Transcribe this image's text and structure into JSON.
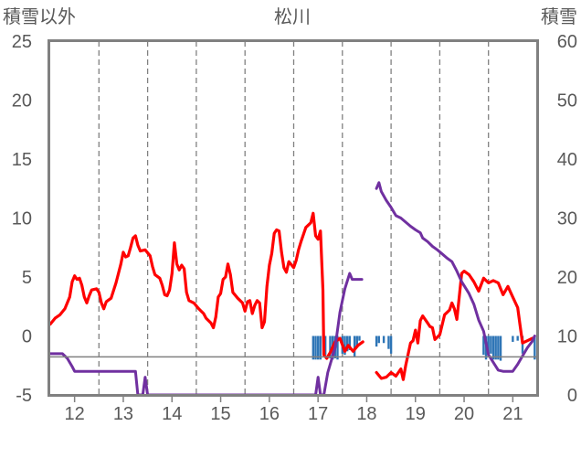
{
  "chart_data": {
    "type": "line",
    "title": "松川",
    "left_axis_label": "積雪以外",
    "right_axis_label": "積雪",
    "left_ylim": [
      -5,
      25
    ],
    "left_ticks": [
      "25",
      "20",
      "15",
      "10",
      "5",
      "0",
      "-5"
    ],
    "right_ylim": [
      0,
      60
    ],
    "right_ticks": [
      "60",
      "50",
      "40",
      "30",
      "20",
      "10",
      "0"
    ],
    "x_ticks": [
      "12",
      "13",
      "14",
      "15",
      "16",
      "17",
      "18",
      "19",
      "20",
      "21"
    ],
    "xlim": [
      11.5,
      21.5
    ],
    "grid": "vertical dashed",
    "colors": {
      "temperature": "#ff0000",
      "snow_depth": "#7030a0",
      "precipitation": "#2e75b6",
      "axis": "#808080"
    },
    "series": [
      {
        "key": "temperature",
        "axis": "left",
        "segments": [
          [
            [
              11.5,
              1.0
            ],
            [
              11.6,
              1.5
            ],
            [
              11.7,
              1.8
            ],
            [
              11.8,
              2.3
            ],
            [
              11.9,
              3.3
            ],
            [
              11.95,
              4.6
            ],
            [
              12.0,
              5.1
            ],
            [
              12.05,
              4.8
            ],
            [
              12.1,
              4.9
            ],
            [
              12.15,
              4.3
            ],
            [
              12.2,
              3.3
            ],
            [
              12.25,
              2.8
            ],
            [
              12.3,
              3.4
            ],
            [
              12.35,
              3.9
            ],
            [
              12.45,
              4.0
            ],
            [
              12.5,
              3.7
            ],
            [
              12.55,
              2.8
            ],
            [
              12.6,
              2.3
            ],
            [
              12.65,
              2.9
            ],
            [
              12.75,
              3.2
            ],
            [
              12.85,
              4.5
            ],
            [
              12.95,
              6.1
            ],
            [
              13.0,
              7.1
            ],
            [
              13.05,
              6.7
            ],
            [
              13.1,
              6.8
            ],
            [
              13.15,
              7.5
            ],
            [
              13.2,
              8.3
            ],
            [
              13.25,
              8.5
            ],
            [
              13.3,
              7.7
            ],
            [
              13.35,
              7.2
            ],
            [
              13.45,
              7.3
            ],
            [
              13.55,
              6.8
            ],
            [
              13.6,
              5.9
            ],
            [
              13.65,
              5.2
            ],
            [
              13.75,
              4.9
            ],
            [
              13.8,
              4.3
            ],
            [
              13.85,
              3.5
            ],
            [
              13.9,
              3.4
            ],
            [
              13.95,
              3.9
            ],
            [
              14.0,
              5.3
            ],
            [
              14.05,
              7.9
            ],
            [
              14.1,
              6.1
            ],
            [
              14.15,
              5.6
            ],
            [
              14.2,
              6.0
            ],
            [
              14.25,
              5.7
            ],
            [
              14.3,
              3.7
            ],
            [
              14.35,
              3.0
            ],
            [
              14.45,
              2.8
            ],
            [
              14.55,
              2.3
            ],
            [
              14.6,
              2.1
            ],
            [
              14.65,
              1.9
            ],
            [
              14.7,
              1.5
            ],
            [
              14.8,
              1.1
            ],
            [
              14.85,
              0.7
            ],
            [
              14.9,
              1.6
            ],
            [
              14.95,
              3.3
            ],
            [
              15.0,
              3.6
            ],
            [
              15.05,
              4.8
            ],
            [
              15.1,
              5.0
            ],
            [
              15.15,
              6.1
            ],
            [
              15.2,
              5.2
            ],
            [
              15.25,
              3.7
            ],
            [
              15.35,
              3.2
            ],
            [
              15.45,
              2.8
            ],
            [
              15.5,
              2.1
            ],
            [
              15.55,
              2.9
            ],
            [
              15.6,
              3.0
            ],
            [
              15.65,
              1.9
            ],
            [
              15.7,
              2.6
            ],
            [
              15.75,
              3.0
            ],
            [
              15.8,
              2.8
            ],
            [
              15.85,
              0.7
            ],
            [
              15.9,
              1.2
            ],
            [
              15.95,
              4.2
            ],
            [
              16.0,
              6.0
            ],
            [
              16.05,
              7.0
            ],
            [
              16.1,
              8.7
            ],
            [
              16.15,
              9.0
            ],
            [
              16.2,
              8.9
            ],
            [
              16.25,
              7.1
            ],
            [
              16.3,
              5.8
            ],
            [
              16.35,
              5.4
            ],
            [
              16.4,
              6.3
            ],
            [
              16.5,
              5.8
            ],
            [
              16.55,
              6.4
            ],
            [
              16.6,
              7.3
            ],
            [
              16.65,
              8.0
            ],
            [
              16.75,
              9.2
            ],
            [
              16.85,
              9.6
            ],
            [
              16.9,
              10.4
            ],
            [
              16.95,
              8.5
            ],
            [
              17.0,
              8.2
            ],
            [
              17.05,
              8.9
            ],
            [
              17.1,
              3.9
            ],
            [
              17.12,
              -1.6
            ],
            [
              17.18,
              -1.9
            ],
            [
              17.25,
              -1.4
            ],
            [
              17.35,
              -0.5
            ],
            [
              17.45,
              -0.2
            ],
            [
              17.55,
              -1.3
            ],
            [
              17.62,
              -0.8
            ],
            [
              17.72,
              -1.3
            ],
            [
              17.82,
              -0.8
            ],
            [
              17.92,
              -0.5
            ]
          ],
          [
            [
              18.2,
              -3.1
            ],
            [
              18.3,
              -3.6
            ],
            [
              18.4,
              -3.5
            ],
            [
              18.5,
              -3.1
            ],
            [
              18.6,
              -3.4
            ],
            [
              18.7,
              -2.8
            ],
            [
              18.75,
              -3.7
            ],
            [
              18.8,
              -2.5
            ],
            [
              18.9,
              -0.6
            ],
            [
              18.95,
              -0.4
            ],
            [
              19.0,
              0.5
            ],
            [
              19.05,
              -0.6
            ],
            [
              19.1,
              1.3
            ],
            [
              19.15,
              1.7
            ],
            [
              19.2,
              1.4
            ],
            [
              19.25,
              1.1
            ],
            [
              19.3,
              0.8
            ],
            [
              19.35,
              0.7
            ],
            [
              19.4,
              -0.3
            ],
            [
              19.5,
              0.1
            ],
            [
              19.6,
              1.8
            ],
            [
              19.7,
              2.2
            ],
            [
              19.75,
              2.8
            ],
            [
              19.8,
              2.3
            ],
            [
              19.85,
              1.4
            ],
            [
              19.9,
              3.3
            ],
            [
              19.95,
              5.3
            ],
            [
              20.0,
              5.5
            ],
            [
              20.1,
              5.2
            ],
            [
              20.2,
              4.6
            ],
            [
              20.3,
              3.8
            ],
            [
              20.4,
              4.9
            ],
            [
              20.5,
              4.5
            ],
            [
              20.6,
              4.7
            ],
            [
              20.7,
              4.5
            ],
            [
              20.8,
              3.5
            ],
            [
              20.9,
              4.2
            ],
            [
              21.0,
              3.3
            ],
            [
              21.1,
              2.4
            ],
            [
              21.15,
              0.9
            ],
            [
              21.2,
              -0.6
            ],
            [
              21.3,
              -0.4
            ],
            [
              21.4,
              -0.2
            ]
          ]
        ]
      },
      {
        "key": "snow_depth",
        "axis": "right",
        "segments": [
          [
            [
              11.5,
              7.0
            ],
            [
              11.75,
              7.0
            ],
            [
              11.85,
              6.2
            ],
            [
              11.95,
              4.8
            ],
            [
              12.0,
              4.0
            ],
            [
              13.25,
              4.0
            ],
            [
              13.3,
              0.0
            ],
            [
              13.4,
              0.0
            ],
            [
              13.45,
              3.0
            ],
            [
              13.5,
              0.0
            ],
            [
              16.95,
              0.0
            ],
            [
              17.0,
              3.0
            ],
            [
              17.05,
              0.0
            ],
            [
              17.12,
              0.0
            ],
            [
              17.2,
              3.8
            ],
            [
              17.35,
              8.0
            ],
            [
              17.45,
              14.0
            ],
            [
              17.55,
              18.0
            ],
            [
              17.65,
              20.6
            ],
            [
              17.7,
              19.6
            ],
            [
              17.8,
              19.6
            ],
            [
              17.9,
              19.6
            ]
          ],
          [
            [
              18.2,
              35.0
            ],
            [
              18.25,
              36.0
            ],
            [
              18.3,
              34.5
            ],
            [
              18.4,
              33.0
            ],
            [
              18.5,
              31.8
            ],
            [
              18.6,
              30.4
            ],
            [
              18.7,
              30.0
            ],
            [
              18.8,
              29.3
            ],
            [
              18.9,
              28.6
            ],
            [
              19.0,
              28.0
            ],
            [
              19.1,
              27.5
            ],
            [
              19.15,
              26.6
            ],
            [
              19.25,
              26.0
            ],
            [
              19.35,
              25.2
            ],
            [
              19.45,
              24.6
            ],
            [
              19.55,
              23.9
            ],
            [
              19.65,
              23.2
            ],
            [
              19.75,
              22.6
            ],
            [
              19.85,
              21.0
            ],
            [
              19.95,
              19.2
            ],
            [
              20.1,
              17.2
            ],
            [
              20.2,
              15.4
            ],
            [
              20.3,
              12.7
            ],
            [
              20.4,
              10.8
            ],
            [
              20.5,
              6.8
            ],
            [
              20.7,
              4.2
            ],
            [
              20.8,
              4.0
            ],
            [
              21.0,
              4.0
            ],
            [
              21.1,
              5.2
            ],
            [
              21.2,
              6.6
            ],
            [
              21.3,
              8.0
            ],
            [
              21.4,
              9.1
            ],
            [
              21.45,
              10.0
            ]
          ]
        ]
      },
      {
        "key": "precipitation",
        "axis": "left",
        "type": "bar",
        "note": "bars hang downward from 0",
        "values": [
          [
            16.9,
            -2.0
          ],
          [
            16.95,
            -2.0
          ],
          [
            17.0,
            -2.0
          ],
          [
            17.05,
            -2.0
          ],
          [
            17.15,
            -1.6
          ],
          [
            17.25,
            -1.9
          ],
          [
            17.3,
            -2.0
          ],
          [
            17.35,
            -1.9
          ],
          [
            17.4,
            -2.0
          ],
          [
            17.5,
            -1.5
          ],
          [
            17.55,
            -1.6
          ],
          [
            17.6,
            -1.3
          ],
          [
            17.65,
            -1.2
          ],
          [
            17.75,
            -1.8
          ],
          [
            17.8,
            -0.9
          ],
          [
            17.85,
            -0.4
          ],
          [
            18.2,
            -0.9
          ],
          [
            18.25,
            -0.6
          ],
          [
            18.35,
            -0.6
          ],
          [
            18.45,
            -1.1
          ],
          [
            18.5,
            -1.5
          ],
          [
            20.4,
            -1.6
          ],
          [
            20.45,
            -2.0
          ],
          [
            20.5,
            -1.7
          ],
          [
            20.55,
            -1.5
          ],
          [
            20.6,
            -2.0
          ],
          [
            20.65,
            -2.0
          ],
          [
            20.7,
            -2.0
          ],
          [
            20.75,
            -2.1
          ],
          [
            21.0,
            -0.5
          ],
          [
            21.1,
            -0.4
          ],
          [
            21.2,
            -1.5
          ],
          [
            21.45,
            -2.0
          ]
        ]
      }
    ]
  }
}
